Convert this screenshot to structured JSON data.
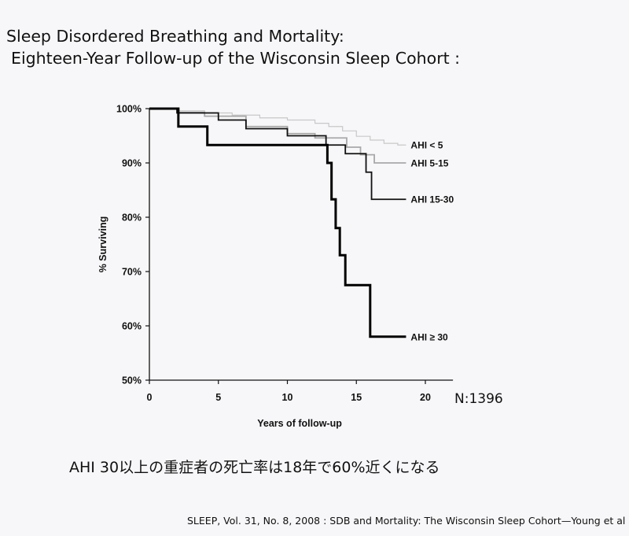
{
  "heading": {
    "line1": "Sleep Disordered Breathing and Mortality:",
    "line2": "Eighteen-Year Follow-up of the Wisconsin Sleep Cohort :"
  },
  "note": "AHI 30以上の重症者の死亡率は18年で60%近くになる",
  "sample_size": "N:1396",
  "citation": "SLEEP, Vol. 31, No. 8, 2008 : SDB and Mortality: The Wisconsin Sleep Cohort—Young et al",
  "colors": {
    "axis": "#111111",
    "ahi_lt5": "#c8c8c8",
    "ahi_5_15": "#a8a8a8",
    "ahi_15_30": "#111111",
    "ahi_ge30": "#000000"
  },
  "chart_data": {
    "type": "line",
    "xlabel": "Years of follow-up",
    "ylabel": "% Surviving",
    "xlim": [
      0,
      22
    ],
    "ylim": [
      50,
      100
    ],
    "xticks": [
      0,
      5,
      10,
      15,
      20
    ],
    "yticks": [
      50,
      60,
      70,
      80,
      90,
      100
    ],
    "ytick_labels": [
      "50%",
      "60%",
      "70%",
      "80%",
      "90%",
      "100%"
    ],
    "series": [
      {
        "name": "AHI < 5",
        "step": true,
        "x": [
          0,
          2,
          4,
          6,
          8,
          10,
          12,
          13,
          14,
          15,
          16,
          17,
          18,
          18.6
        ],
        "y": [
          100,
          99.6,
          99.2,
          98.8,
          98.3,
          97.9,
          97.3,
          96.7,
          95.9,
          94.9,
          94.2,
          93.6,
          93.3,
          93.3
        ]
      },
      {
        "name": "AHI 5-15",
        "step": true,
        "x": [
          0,
          2,
          4,
          7,
          10,
          12,
          14.3,
          15.3,
          16.3,
          18.6
        ],
        "y": [
          100,
          99.3,
          98.6,
          96.7,
          95.4,
          94.6,
          92.9,
          91.5,
          90,
          90
        ]
      },
      {
        "name": "AHI 15-30",
        "step": true,
        "x": [
          0,
          2,
          5,
          7,
          10,
          12.8,
          14.2,
          15.7,
          16.1,
          18.6
        ],
        "y": [
          100,
          99.2,
          97.9,
          96.3,
          95,
          93.3,
          91.7,
          88.3,
          83.3,
          83.3
        ]
      },
      {
        "name": "AHI ≥ 30",
        "step": true,
        "x": [
          0,
          2.1,
          4.2,
          12.7,
          12.9,
          13.2,
          13.5,
          13.8,
          14.2,
          16.0,
          18.6
        ],
        "y": [
          100,
          96.7,
          93.3,
          93.3,
          90.0,
          83.3,
          78,
          73,
          67.5,
          58,
          58
        ]
      }
    ],
    "line_labels": [
      "AHI < 5",
      "AHI 5-15",
      "AHI 15-30",
      "AHI ≥ 30"
    ]
  }
}
